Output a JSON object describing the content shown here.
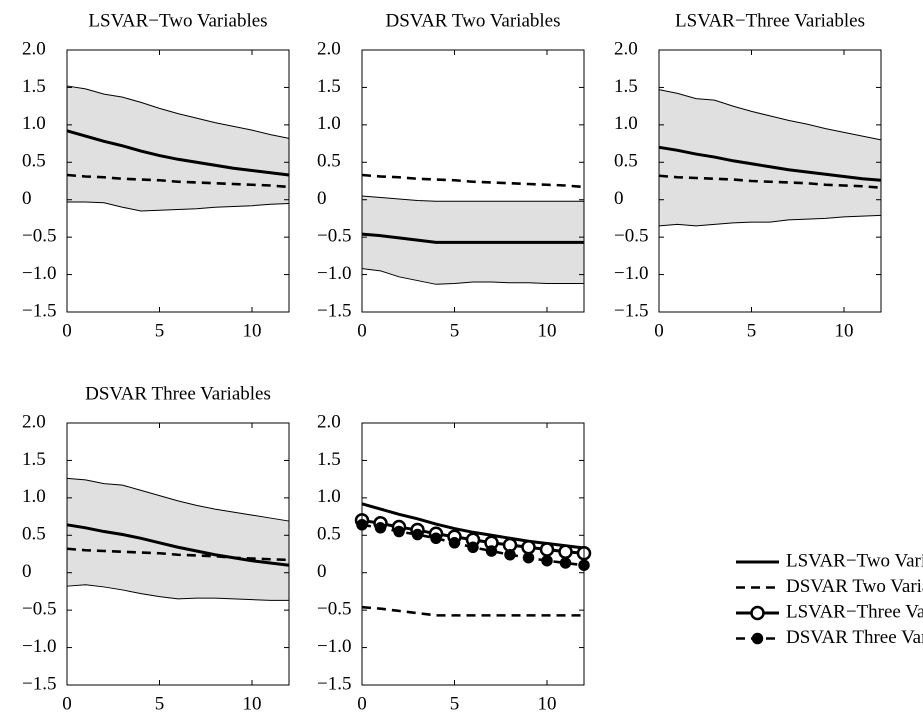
{
  "chart_data": [
    {
      "type": "line",
      "title": "LSVAR−Two Variables",
      "x": [
        0,
        1,
        2,
        3,
        4,
        5,
        6,
        7,
        8,
        9,
        10,
        11,
        12
      ],
      "xlim": [
        0,
        12
      ],
      "xticks": [
        0,
        5,
        10
      ],
      "ylim": [
        -1.5,
        2
      ],
      "yticks": [
        {
          "value": -1.5,
          "label": "−1.5"
        },
        {
          "value": -1,
          "label": "−1.0"
        },
        {
          "value": -0.5,
          "label": "−0.5"
        },
        0,
        0.5,
        {
          "value": 1,
          "label": "1.0"
        },
        1.5,
        {
          "value": 2,
          "label": "2.0"
        }
      ],
      "grid": false,
      "band": {
        "color": "#e0e0e0",
        "upper": [
          1.52,
          1.48,
          1.41,
          1.37,
          1.3,
          1.22,
          1.15,
          1.09,
          1.03,
          0.98,
          0.93,
          0.87,
          0.82
        ],
        "lower": [
          -0.03,
          -0.03,
          -0.04,
          -0.1,
          -0.15,
          -0.14,
          -0.13,
          -0.12,
          -0.1,
          -0.09,
          -0.08,
          -0.06,
          -0.05
        ]
      },
      "series": [
        {
          "color": "#000000",
          "style": "solid",
          "values": [
            0.92,
            0.85,
            0.78,
            0.72,
            0.65,
            0.59,
            0.54,
            0.5,
            0.46,
            0.42,
            0.39,
            0.36,
            0.33
          ]
        },
        {
          "color": "#000000",
          "style": "dashed",
          "values": [
            0.33,
            0.31,
            0.3,
            0.28,
            0.27,
            0.26,
            0.24,
            0.23,
            0.22,
            0.21,
            0.2,
            0.19,
            0.17
          ]
        }
      ]
    },
    {
      "type": "line",
      "title": "DSVAR Two Variables",
      "x": [
        0,
        1,
        2,
        3,
        4,
        5,
        6,
        7,
        8,
        9,
        10,
        11,
        12
      ],
      "xlim": [
        0,
        12
      ],
      "xticks": [
        0,
        5,
        10
      ],
      "ylim": [
        -1.5,
        2
      ],
      "yticks": [
        {
          "value": -1.5,
          "label": "−1.5"
        },
        {
          "value": -1,
          "label": "−1.0"
        },
        {
          "value": -0.5,
          "label": "−0.5"
        },
        0,
        0.5,
        {
          "value": 1,
          "label": "1.0"
        },
        1.5,
        {
          "value": 2,
          "label": "2.0"
        }
      ],
      "grid": false,
      "band": {
        "color": "#e0e0e0",
        "upper": [
          0.05,
          0.03,
          0.01,
          -0.01,
          -0.02,
          -0.02,
          -0.02,
          -0.02,
          -0.02,
          -0.02,
          -0.02,
          -0.02,
          -0.02
        ],
        "lower": [
          -0.92,
          -0.95,
          -1.03,
          -1.08,
          -1.13,
          -1.12,
          -1.1,
          -1.1,
          -1.11,
          -1.11,
          -1.12,
          -1.12,
          -1.12
        ]
      },
      "series": [
        {
          "color": "#000000",
          "style": "solid",
          "values": [
            -0.46,
            -0.48,
            -0.51,
            -0.54,
            -0.57,
            -0.57,
            -0.57,
            -0.57,
            -0.57,
            -0.57,
            -0.57,
            -0.57,
            -0.57
          ]
        },
        {
          "color": "#000000",
          "style": "dashed",
          "values": [
            0.33,
            0.31,
            0.3,
            0.28,
            0.27,
            0.26,
            0.24,
            0.23,
            0.22,
            0.21,
            0.2,
            0.19,
            0.17
          ]
        }
      ]
    },
    {
      "type": "line",
      "title": "LSVAR−Three Variables",
      "x": [
        0,
        1,
        2,
        3,
        4,
        5,
        6,
        7,
        8,
        9,
        10,
        11,
        12
      ],
      "xlim": [
        0,
        12
      ],
      "xticks": [
        0,
        5,
        10
      ],
      "ylim": [
        -1.5,
        2
      ],
      "yticks": [
        {
          "value": -1.5,
          "label": "−1.5"
        },
        {
          "value": -1,
          "label": "−1.0"
        },
        {
          "value": -0.5,
          "label": "−0.5"
        },
        0,
        0.5,
        {
          "value": 1,
          "label": "1.0"
        },
        1.5,
        {
          "value": 2,
          "label": "2.0"
        }
      ],
      "grid": false,
      "band": {
        "color": "#e0e0e0",
        "upper": [
          1.47,
          1.42,
          1.35,
          1.33,
          1.25,
          1.18,
          1.12,
          1.06,
          1.01,
          0.95,
          0.9,
          0.85,
          0.8
        ],
        "lower": [
          -0.35,
          -0.33,
          -0.35,
          -0.33,
          -0.31,
          -0.3,
          -0.3,
          -0.27,
          -0.26,
          -0.25,
          -0.23,
          -0.22,
          -0.21
        ]
      },
      "series": [
        {
          "color": "#000000",
          "style": "solid",
          "values": [
            0.7,
            0.66,
            0.61,
            0.57,
            0.52,
            0.48,
            0.44,
            0.4,
            0.37,
            0.34,
            0.31,
            0.28,
            0.26
          ]
        },
        {
          "color": "#000000",
          "style": "dashed",
          "values": [
            0.32,
            0.3,
            0.29,
            0.28,
            0.27,
            0.25,
            0.24,
            0.23,
            0.22,
            0.2,
            0.19,
            0.18,
            0.16
          ]
        }
      ]
    },
    {
      "type": "line",
      "title": "DSVAR Three Variables",
      "x": [
        0,
        1,
        2,
        3,
        4,
        5,
        6,
        7,
        8,
        9,
        10,
        11,
        12
      ],
      "xlim": [
        0,
        12
      ],
      "xticks": [
        0,
        5,
        10
      ],
      "ylim": [
        -1.5,
        2
      ],
      "yticks": [
        {
          "value": -1.5,
          "label": "−1.5"
        },
        {
          "value": -1,
          "label": "−1.0"
        },
        {
          "value": -0.5,
          "label": "−0.5"
        },
        0,
        0.5,
        {
          "value": 1,
          "label": "1.0"
        },
        1.5,
        {
          "value": 2,
          "label": "2.0"
        }
      ],
      "grid": false,
      "band": {
        "color": "#e0e0e0",
        "upper": [
          1.26,
          1.24,
          1.19,
          1.17,
          1.1,
          1.03,
          0.96,
          0.9,
          0.85,
          0.81,
          0.77,
          0.73,
          0.69
        ],
        "lower": [
          -0.18,
          -0.16,
          -0.19,
          -0.23,
          -0.28,
          -0.32,
          -0.35,
          -0.34,
          -0.34,
          -0.35,
          -0.36,
          -0.37,
          -0.37
        ]
      },
      "series": [
        {
          "color": "#000000",
          "style": "solid",
          "values": [
            0.64,
            0.6,
            0.55,
            0.51,
            0.46,
            0.4,
            0.34,
            0.29,
            0.24,
            0.2,
            0.16,
            0.13,
            0.1
          ]
        },
        {
          "color": "#000000",
          "style": "dashed",
          "values": [
            0.32,
            0.3,
            0.29,
            0.28,
            0.27,
            0.26,
            0.24,
            0.23,
            0.22,
            0.2,
            0.19,
            0.18,
            0.17
          ]
        }
      ]
    },
    {
      "type": "line",
      "x": [
        0,
        1,
        2,
        3,
        4,
        5,
        6,
        7,
        8,
        9,
        10,
        11,
        12
      ],
      "xlim": [
        0,
        12
      ],
      "xticks": [
        0,
        5,
        10
      ],
      "ylim": [
        -1.5,
        2
      ],
      "yticks": [
        {
          "value": -1.5,
          "label": "−1.5"
        },
        {
          "value": -1,
          "label": "−1.0"
        },
        {
          "value": -0.5,
          "label": "−0.5"
        },
        0,
        0.5,
        {
          "value": 1,
          "label": "1.0"
        },
        1.5,
        {
          "value": 2,
          "label": "2.0"
        }
      ],
      "grid": false,
      "legend": "outside-right",
      "series": [
        {
          "name": "LSVAR−Two Variables",
          "color": "#000000",
          "style": "solid",
          "values": [
            0.92,
            0.85,
            0.78,
            0.72,
            0.65,
            0.59,
            0.54,
            0.5,
            0.46,
            0.42,
            0.39,
            0.36,
            0.33
          ]
        },
        {
          "name": "DSVAR Two Variables",
          "color": "#000000",
          "style": "dashed",
          "values": [
            -0.46,
            -0.48,
            -0.51,
            -0.54,
            -0.57,
            -0.57,
            -0.57,
            -0.57,
            -0.57,
            -0.57,
            -0.57,
            -0.57,
            -0.57
          ]
        },
        {
          "name": "LSVAR−Three Variables",
          "color": "#000000",
          "style": "solid",
          "marker": "open-circle",
          "values": [
            0.7,
            0.66,
            0.61,
            0.57,
            0.52,
            0.48,
            0.44,
            0.4,
            0.37,
            0.34,
            0.31,
            0.28,
            0.26
          ]
        },
        {
          "name": "DSVAR Three Variables",
          "color": "#000000",
          "style": "dashed",
          "marker": "dot",
          "values": [
            0.64,
            0.6,
            0.55,
            0.51,
            0.46,
            0.4,
            0.34,
            0.29,
            0.24,
            0.2,
            0.16,
            0.13,
            0.1
          ]
        }
      ]
    }
  ]
}
